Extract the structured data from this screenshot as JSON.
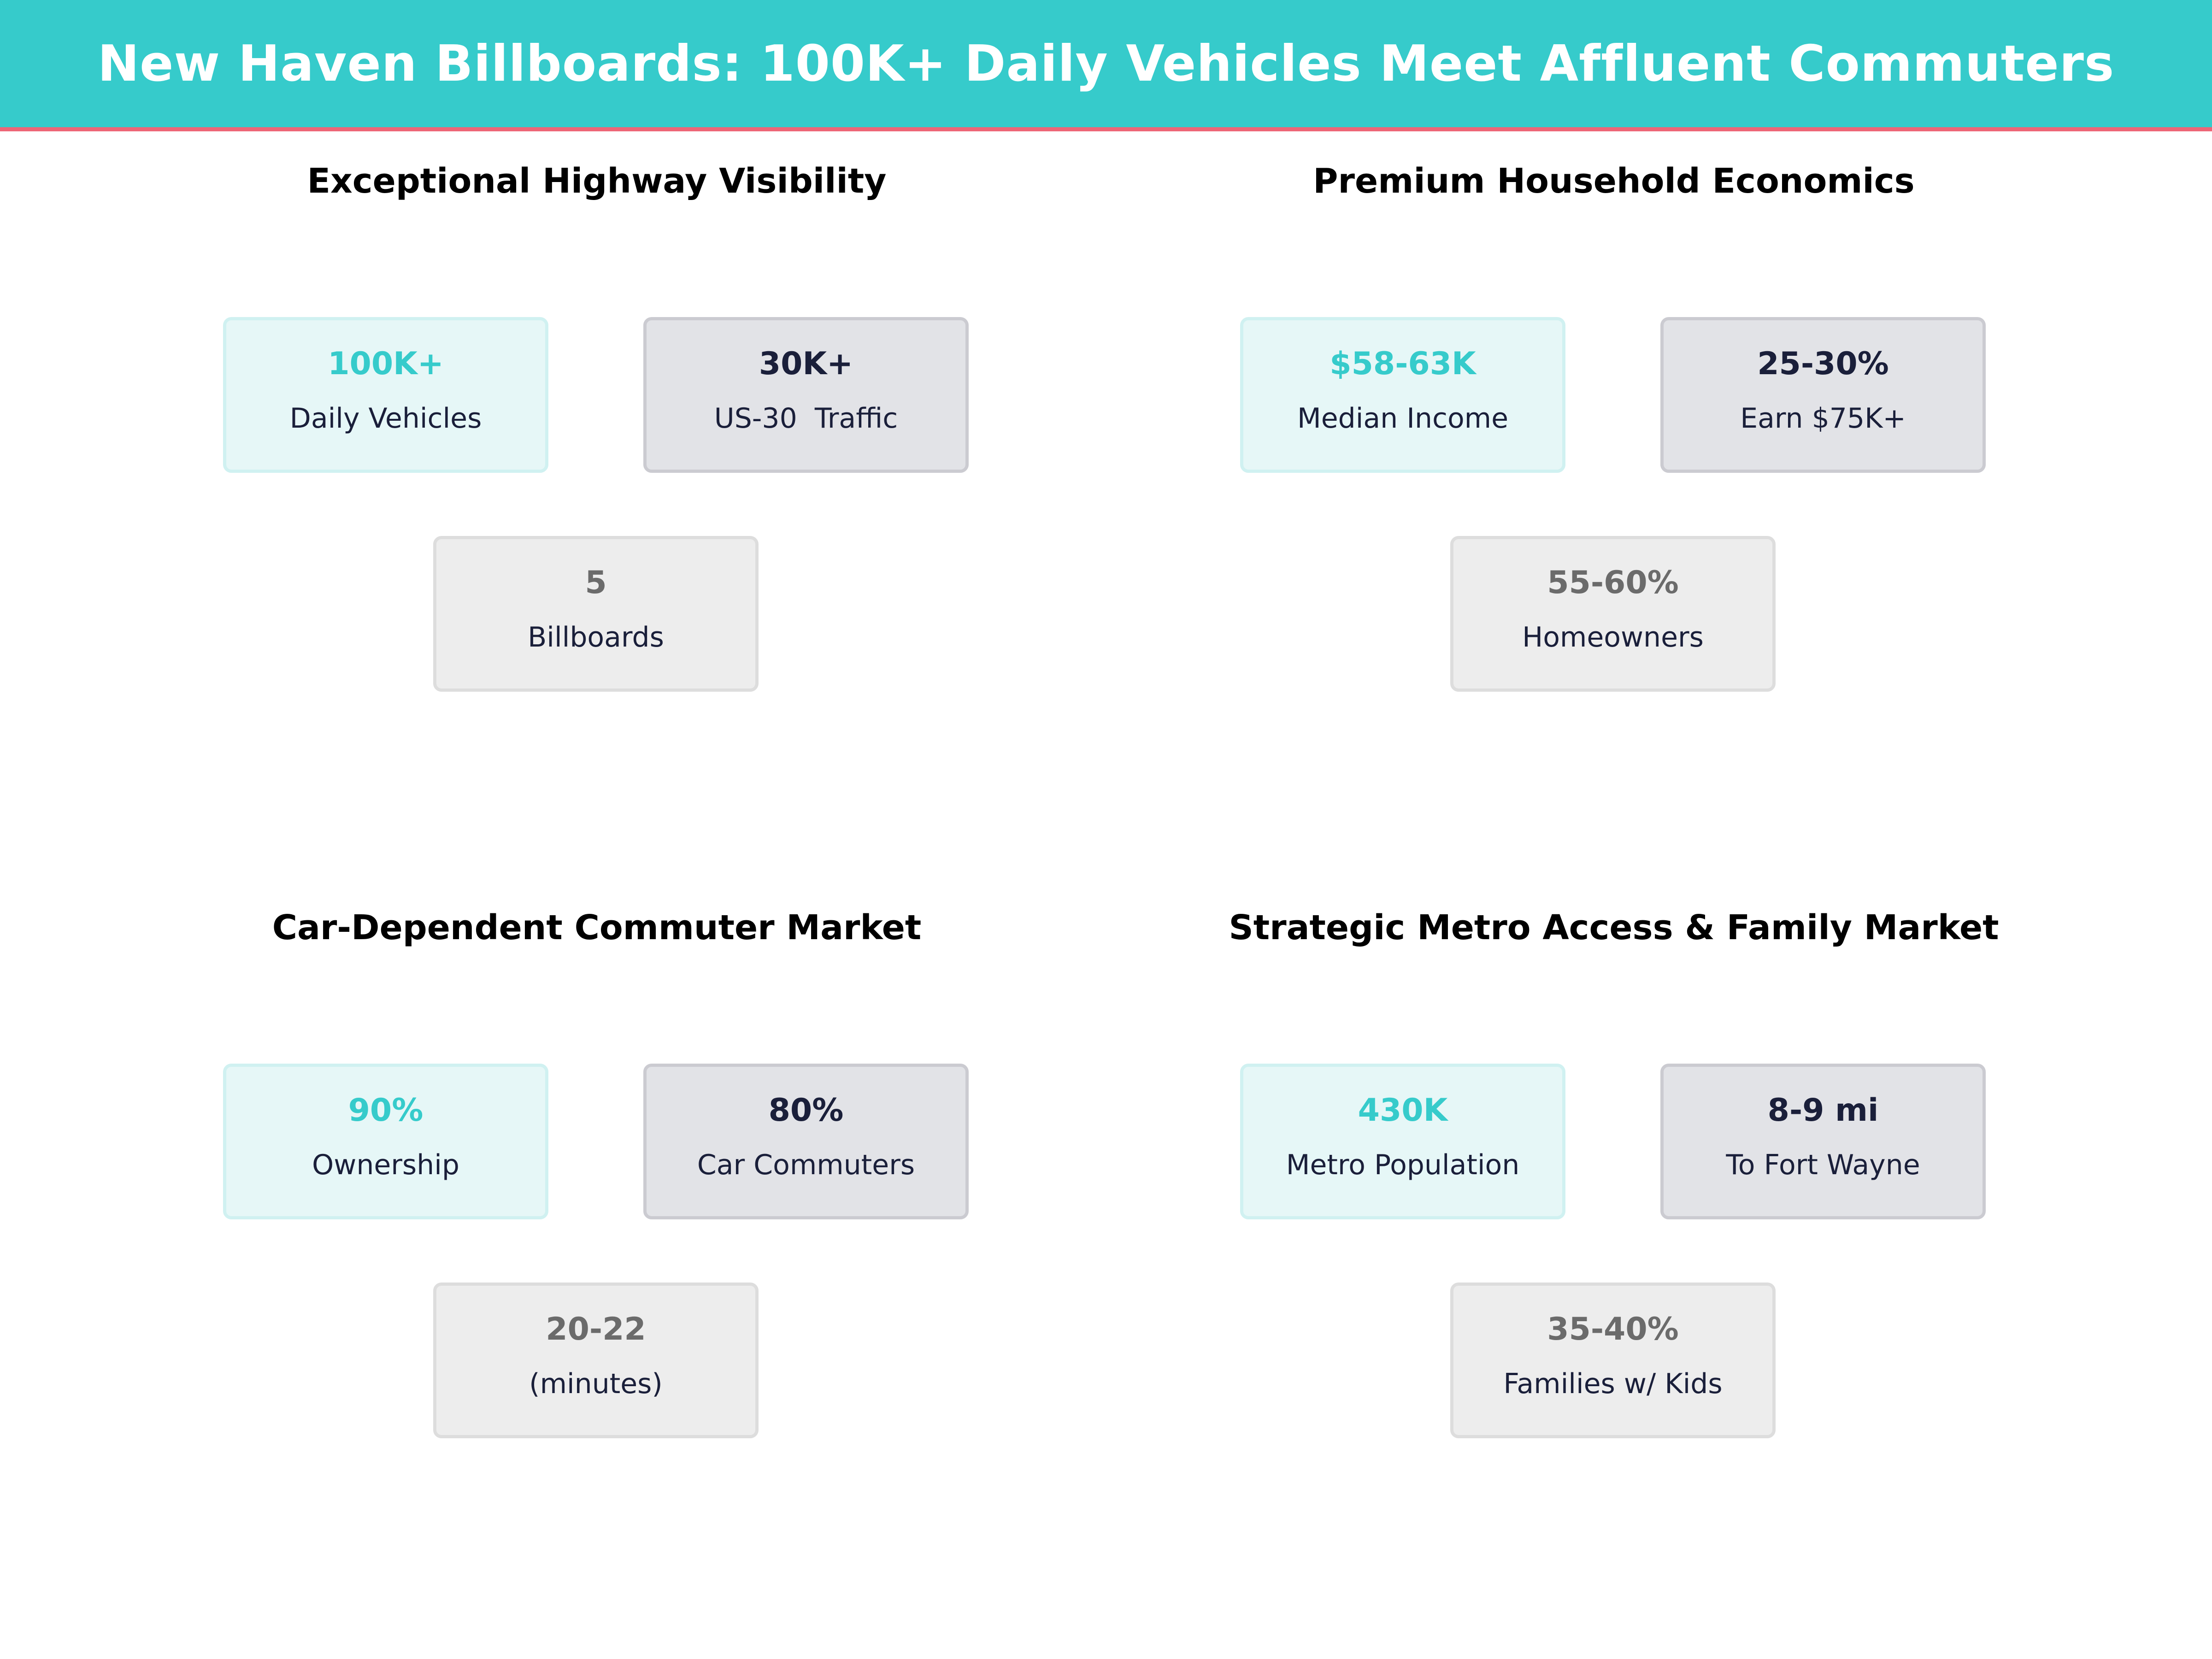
{
  "header": {
    "title": "New Haven Billboards: 100K+ Daily Vehicles Meet Affluent Commuters"
  },
  "colors": {
    "accent": "#36CBCB",
    "header_rule": "#EE6677",
    "dark": "#1A1F3A",
    "muted": "#6B6B6B"
  },
  "panels": [
    {
      "title": "Exceptional Highway Visibility",
      "cards": [
        {
          "value": "100K+",
          "label": "Daily Vehicles"
        },
        {
          "value": "30K+",
          "label": "US-30  Traffic"
        },
        {
          "value": "5",
          "label": "Billboards"
        }
      ]
    },
    {
      "title": "Premium Household Economics",
      "cards": [
        {
          "value": "$58-63K",
          "label": "Median Income"
        },
        {
          "value": "25-30%",
          "label": "Earn $75K+"
        },
        {
          "value": "55-60%",
          "label": "Homeowners"
        }
      ]
    },
    {
      "title": "Car-Dependent Commuter Market",
      "cards": [
        {
          "value": "90%",
          "label": "Ownership"
        },
        {
          "value": "80%",
          "label": "Car Commuters"
        },
        {
          "value": "20-22",
          "label": "(minutes)"
        }
      ]
    },
    {
      "title": "Strategic Metro Access & Family Market",
      "cards": [
        {
          "value": "430K",
          "label": "Metro Population"
        },
        {
          "value": "8-9 mi",
          "label": "To Fort Wayne"
        },
        {
          "value": "35-40%",
          "label": "Families w/ Kids"
        }
      ]
    }
  ]
}
